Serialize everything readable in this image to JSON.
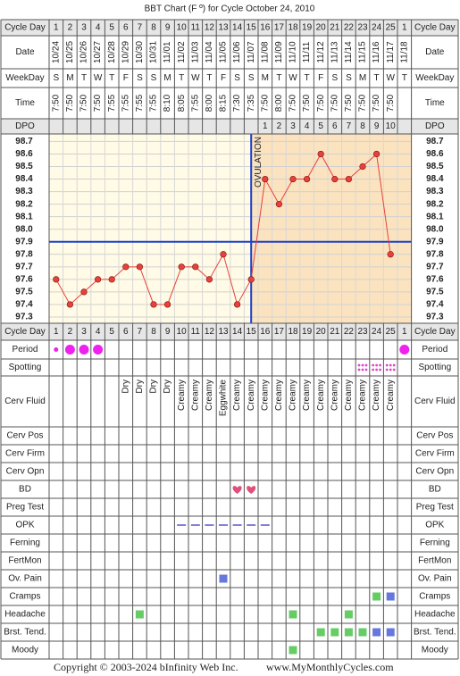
{
  "title": "BBT Chart (F º) for Cycle October 24, 2010",
  "cycle_day": {
    "label": "Cycle Day",
    "values": [
      1,
      2,
      3,
      4,
      5,
      6,
      7,
      8,
      9,
      10,
      11,
      12,
      13,
      14,
      15,
      16,
      17,
      18,
      19,
      20,
      21,
      22,
      23,
      24,
      25,
      1
    ]
  },
  "date": {
    "label": "Date",
    "values": [
      "10/24",
      "10/25",
      "10/26",
      "10/27",
      "10/28",
      "10/29",
      "10/30",
      "10/31",
      "11/01",
      "11/02",
      "11/03",
      "11/04",
      "11/05",
      "11/06",
      "11/07",
      "11/08",
      "11/09",
      "11/10",
      "11/11",
      "11/12",
      "11/13",
      "11/14",
      "11/15",
      "11/16",
      "11/17",
      "11/18"
    ]
  },
  "weekday": {
    "label": "WeekDay",
    "values": [
      "S",
      "M",
      "T",
      "W",
      "T",
      "F",
      "S",
      "S",
      "M",
      "T",
      "W",
      "T",
      "F",
      "S",
      "S",
      "M",
      "T",
      "W",
      "T",
      "F",
      "S",
      "S",
      "M",
      "T",
      "W",
      "T"
    ]
  },
  "time": {
    "label": "Time",
    "values": [
      "7:50",
      "7:50",
      "7:50",
      "7:50",
      "7:55",
      "7:55",
      "7:55",
      "7:55",
      "8:10",
      "8:05",
      "7:55",
      "8:00",
      "8:15",
      "7:30",
      "7:35",
      "7:50",
      "8:00",
      "7:50",
      "7:50",
      "7:50",
      "7:50",
      "7:50",
      "7:50",
      "7:50",
      "7:50",
      null
    ]
  },
  "dpo": {
    "label": "DPO",
    "values": [
      null,
      null,
      null,
      null,
      null,
      null,
      null,
      null,
      null,
      null,
      null,
      null,
      null,
      null,
      null,
      1,
      2,
      3,
      4,
      5,
      6,
      7,
      8,
      9,
      10,
      null
    ]
  },
  "temperature": {
    "values": [
      97.6,
      97.4,
      97.5,
      97.6,
      97.6,
      97.7,
      97.7,
      97.4,
      97.4,
      97.7,
      97.7,
      97.6,
      97.8,
      97.4,
      97.6,
      98.4,
      98.2,
      98.4,
      98.4,
      98.6,
      98.4,
      98.4,
      98.5,
      98.6,
      97.8,
      null
    ],
    "ylim": [
      97.25,
      98.76
    ],
    "yticks": [
      98.7,
      98.6,
      98.5,
      98.4,
      98.3,
      98.2,
      98.1,
      {
        "value": 98,
        "label": "98.0"
      },
      97.9,
      97.8,
      97.7,
      97.6,
      97.5,
      97.4,
      97.3
    ],
    "line_color": "#e8413c",
    "coverline": 97.9,
    "coverline_color": "#1a3fcc",
    "ovulation_day": 15,
    "ovulation_label": "OVULATION"
  },
  "period": {
    "label": "Period",
    "values": [
      "light",
      "heavy",
      "heavy",
      "heavy",
      null,
      null,
      null,
      null,
      null,
      null,
      null,
      null,
      null,
      null,
      null,
      null,
      null,
      null,
      null,
      null,
      null,
      null,
      null,
      null,
      null,
      "heavy"
    ],
    "color": "#ee22ee"
  },
  "spotting": {
    "label": "Spotting",
    "values": [
      false,
      false,
      false,
      false,
      false,
      false,
      false,
      false,
      false,
      false,
      false,
      false,
      false,
      false,
      false,
      false,
      false,
      false,
      false,
      false,
      false,
      false,
      true,
      true,
      true,
      false
    ],
    "color": "#dd44cc"
  },
  "cerv_fluid": {
    "label": "Cerv Fluid",
    "values": [
      null,
      null,
      null,
      null,
      null,
      "Dry",
      "Dry",
      "Dry",
      "Dry",
      "Creamy",
      "Creamy",
      "Creamy",
      "Eggwhite",
      "Creamy",
      "Creamy",
      "Creamy",
      "Creamy",
      "Creamy",
      "Creamy",
      "Creamy",
      "Creamy",
      "Creamy",
      "Creamy",
      "Creamy",
      "Creamy",
      null
    ]
  },
  "cerv_pos": {
    "label": "Cerv Pos"
  },
  "cerv_firm": {
    "label": "Cerv Firm"
  },
  "cerv_opn": {
    "label": "Cerv Opn"
  },
  "bd": {
    "label": "BD",
    "values": [
      false,
      false,
      false,
      false,
      false,
      false,
      false,
      false,
      false,
      false,
      false,
      false,
      false,
      true,
      true,
      false,
      false,
      false,
      false,
      false,
      false,
      false,
      false,
      false,
      false,
      false
    ],
    "color": "#e0507a"
  },
  "preg_test": {
    "label": "Preg Test"
  },
  "opk": {
    "label": "OPK",
    "values": [
      false,
      false,
      false,
      false,
      false,
      false,
      false,
      false,
      false,
      true,
      true,
      true,
      true,
      true,
      true,
      true,
      false,
      false,
      false,
      false,
      false,
      false,
      false,
      false,
      false,
      false
    ],
    "color": "#5555cc"
  },
  "ferning": {
    "label": "Ferning"
  },
  "fertmon": {
    "label": "FertMon"
  },
  "ov_pain": {
    "label": "Ov. Pain",
    "values": [
      null,
      null,
      null,
      null,
      null,
      null,
      null,
      null,
      null,
      null,
      null,
      null,
      "#6677dd",
      null,
      null,
      null,
      null,
      null,
      null,
      null,
      null,
      null,
      null,
      null,
      null,
      null
    ]
  },
  "cramps": {
    "label": "Cramps",
    "values": [
      null,
      null,
      null,
      null,
      null,
      null,
      null,
      null,
      null,
      null,
      null,
      null,
      null,
      null,
      null,
      null,
      null,
      null,
      null,
      null,
      null,
      null,
      null,
      "#66cc66",
      "#6677dd",
      null
    ]
  },
  "headache": {
    "label": "Headache",
    "values": [
      null,
      null,
      null,
      null,
      null,
      null,
      "#66cc66",
      null,
      null,
      null,
      null,
      null,
      null,
      null,
      null,
      null,
      null,
      "#66cc66",
      null,
      null,
      null,
      "#66cc66",
      null,
      null,
      null,
      null
    ]
  },
  "brst_tend": {
    "label": "Brst. Tend.",
    "values": [
      null,
      null,
      null,
      null,
      null,
      null,
      null,
      null,
      null,
      null,
      null,
      null,
      null,
      null,
      null,
      null,
      null,
      null,
      null,
      "#66cc66",
      "#66cc66",
      "#66cc66",
      "#66cc66",
      "#6677dd",
      "#6677dd",
      null
    ]
  },
  "moody": {
    "label": "Moody",
    "values": [
      null,
      null,
      null,
      null,
      null,
      null,
      null,
      null,
      null,
      null,
      null,
      null,
      null,
      null,
      null,
      null,
      null,
      "#66cc66",
      null,
      null,
      null,
      null,
      null,
      null,
      null,
      null
    ]
  },
  "footer": {
    "copyright": "Copyright © 2003-2024 bInfinity Web Inc.",
    "site": "www.MyMonthlyCycles.com"
  }
}
